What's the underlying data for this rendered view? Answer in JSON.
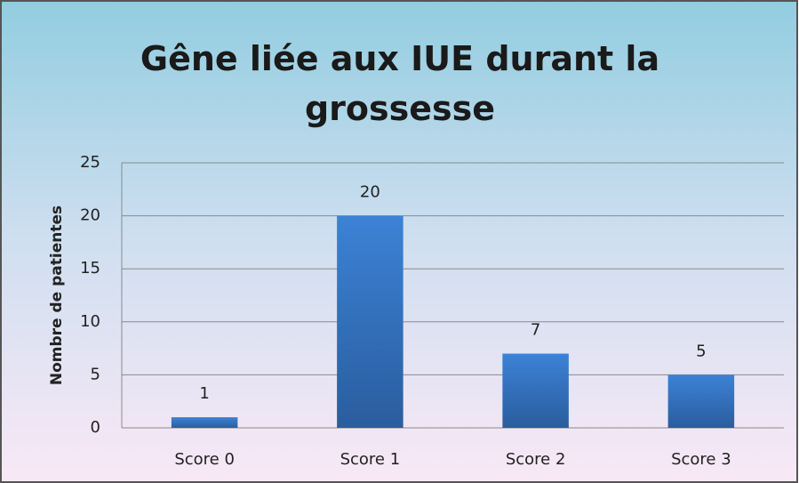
{
  "chart_data": {
    "type": "bar",
    "title": "Gêne liée aux IUE durant la grossesse",
    "y_label": "Nombre de patientes",
    "categories": [
      "Score 0",
      "Score 1",
      "Score 2",
      "Score 3"
    ],
    "values": [
      1,
      20,
      7,
      5
    ],
    "color": "#3474c4",
    "ylim": [
      0,
      25
    ],
    "yticks": [
      0,
      5,
      10,
      15,
      20,
      25
    ],
    "grid": true
  }
}
